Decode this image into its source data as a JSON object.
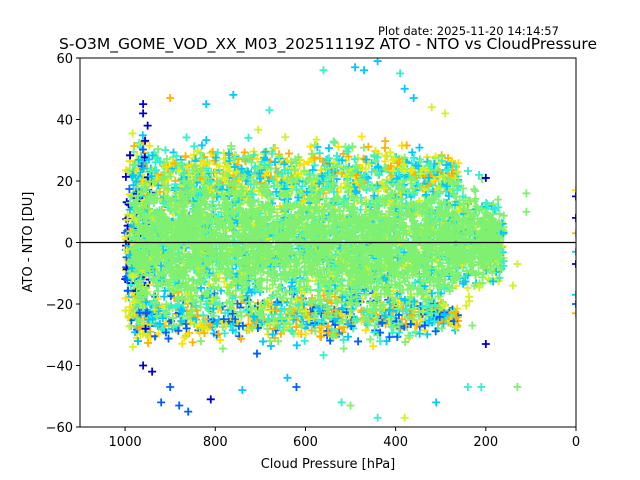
{
  "chart_data": {
    "type": "scatter",
    "title": "S-O3M_GOME_VOD_XX_M03_20251119Z ATO - NTO vs CloudPressure",
    "plot_date": "Plot date: 2025-11-20 14:14:57",
    "xlabel": "Cloud Pressure [hPa]",
    "ylabel": "ATO - NTO [DU]",
    "xlim": [
      1100,
      0
    ],
    "ylim": [
      -60,
      60
    ],
    "xticks": [
      1000,
      800,
      600,
      400,
      200,
      0
    ],
    "xtick_labels": [
      "1000",
      "800",
      "600",
      "400",
      "200",
      "0"
    ],
    "yticks": [
      60,
      40,
      20,
      0,
      -20,
      -40,
      -60
    ],
    "ytick_labels": [
      "60",
      "40",
      "20",
      "0",
      "−20",
      "−40",
      "−60"
    ],
    "reference_line_y": 0,
    "marker": "+",
    "palette": [
      "#0000d0",
      "#0060ff",
      "#00c8ff",
      "#30f0d0",
      "#80f070",
      "#d8f020",
      "#ffe000",
      "#ffb000"
    ],
    "core_color": "#80f070",
    "clusters": [
      {
        "x_range": [
          990,
          160
        ],
        "y_center": 0,
        "y_spread": 22,
        "count": 2600,
        "colors": [
          4,
          4,
          4,
          3,
          2,
          5
        ]
      },
      {
        "x_range": [
          990,
          260
        ],
        "y_center": 22,
        "y_spread": 10,
        "count": 900,
        "colors": [
          2,
          5,
          6,
          7,
          3,
          4
        ]
      },
      {
        "x_range": [
          990,
          260
        ],
        "y_center": -24,
        "y_spread": 8,
        "count": 800,
        "colors": [
          2,
          3,
          1,
          6,
          7,
          4
        ]
      },
      {
        "x_range": [
          1000,
          940
        ],
        "y_center": 0,
        "y_spread": 28,
        "count": 250,
        "colors": [
          0,
          1,
          2,
          5,
          6
        ]
      }
    ],
    "outliers": [
      {
        "x": 960,
        "y": 45,
        "c": 0
      },
      {
        "x": 960,
        "y": 42,
        "c": 0
      },
      {
        "x": 950,
        "y": 38,
        "c": 0
      },
      {
        "x": 900,
        "y": 47,
        "c": 7
      },
      {
        "x": 820,
        "y": 45,
        "c": 2
      },
      {
        "x": 760,
        "y": 48,
        "c": 2
      },
      {
        "x": 680,
        "y": 43,
        "c": 3
      },
      {
        "x": 560,
        "y": 56,
        "c": 3
      },
      {
        "x": 490,
        "y": 57,
        "c": 2
      },
      {
        "x": 470,
        "y": 56,
        "c": 2
      },
      {
        "x": 440,
        "y": 59,
        "c": 2
      },
      {
        "x": 390,
        "y": 55,
        "c": 3
      },
      {
        "x": 380,
        "y": 50,
        "c": 2
      },
      {
        "x": 360,
        "y": 47,
        "c": 2
      },
      {
        "x": 320,
        "y": 44,
        "c": 5
      },
      {
        "x": 290,
        "y": 42,
        "c": 5
      },
      {
        "x": 200,
        "y": 21,
        "c": 0
      },
      {
        "x": 215,
        "y": 22,
        "c": 3
      },
      {
        "x": 110,
        "y": 16,
        "c": 4
      },
      {
        "x": 110,
        "y": 10,
        "c": 4
      },
      {
        "x": 130,
        "y": -7,
        "c": 5
      },
      {
        "x": 140,
        "y": -14,
        "c": 5
      },
      {
        "x": 200,
        "y": -33,
        "c": 0
      },
      {
        "x": 230,
        "y": -27,
        "c": 4
      },
      {
        "x": 210,
        "y": -47,
        "c": 3
      },
      {
        "x": 240,
        "y": -47,
        "c": 3
      },
      {
        "x": 130,
        "y": -47,
        "c": 4
      },
      {
        "x": 310,
        "y": -52,
        "c": 2
      },
      {
        "x": 380,
        "y": -57,
        "c": 5
      },
      {
        "x": 440,
        "y": -57,
        "c": 3
      },
      {
        "x": 900,
        "y": -47,
        "c": 1
      },
      {
        "x": 880,
        "y": -53,
        "c": 1
      },
      {
        "x": 860,
        "y": -55,
        "c": 1
      },
      {
        "x": 810,
        "y": -51,
        "c": 0
      },
      {
        "x": 740,
        "y": -48,
        "c": 2
      },
      {
        "x": 920,
        "y": -52,
        "c": 1
      },
      {
        "x": 960,
        "y": -40,
        "c": 0
      },
      {
        "x": 940,
        "y": -42,
        "c": 0
      },
      {
        "x": 520,
        "y": -52,
        "c": 3
      },
      {
        "x": 500,
        "y": -53,
        "c": 4
      },
      {
        "x": 620,
        "y": -47,
        "c": 1
      },
      {
        "x": 640,
        "y": -44,
        "c": 2
      },
      {
        "x": 0,
        "y": 17,
        "c": 6
      },
      {
        "x": 0,
        "y": 15,
        "c": 0
      },
      {
        "x": 0,
        "y": 8,
        "c": 0
      },
      {
        "x": 0,
        "y": 3,
        "c": 7
      },
      {
        "x": 0,
        "y": -3,
        "c": 2
      },
      {
        "x": 0,
        "y": -7,
        "c": 0
      },
      {
        "x": 0,
        "y": -17,
        "c": 2
      },
      {
        "x": 0,
        "y": -20,
        "c": 1
      },
      {
        "x": 0,
        "y": -23,
        "c": 7
      }
    ]
  }
}
